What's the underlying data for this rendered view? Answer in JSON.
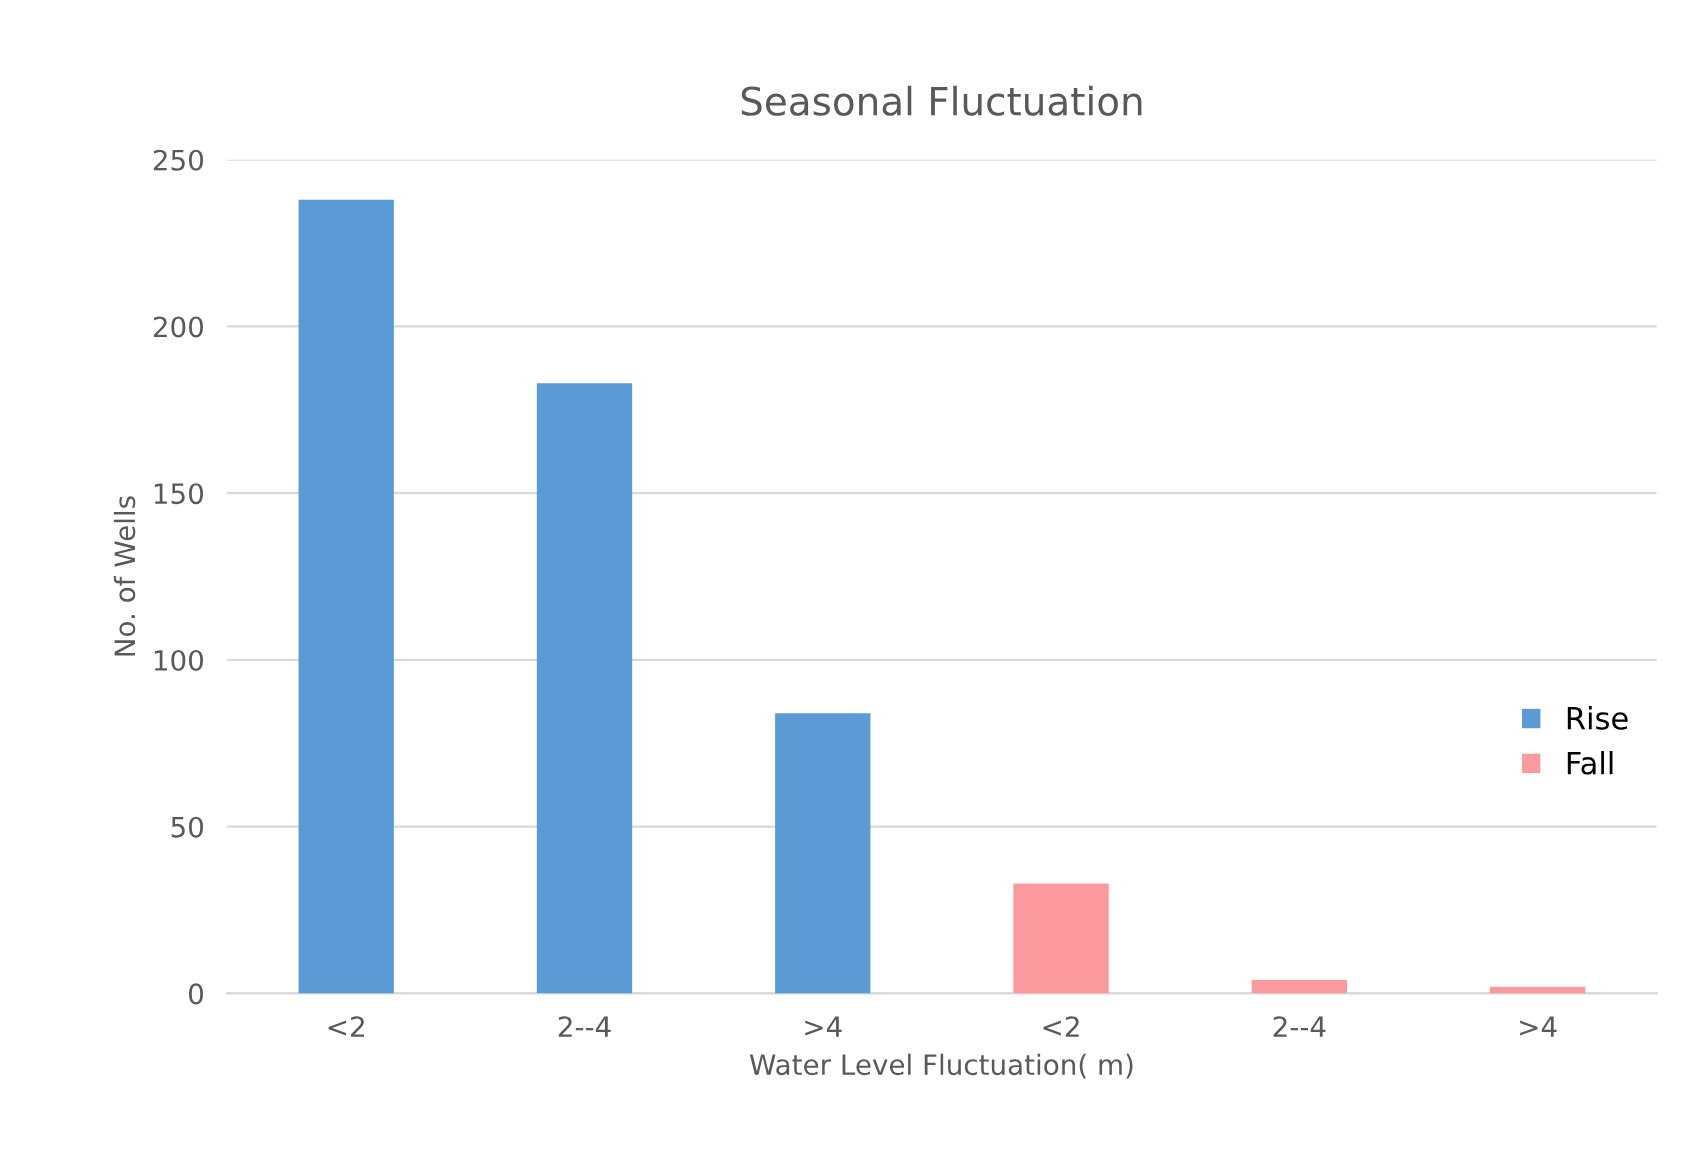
{
  "chart_data": {
    "type": "bar",
    "title": "Seasonal Fluctuation",
    "xlabel": "Water Level Fluctuation( m)",
    "ylabel": "No. of Wells",
    "categories": [
      "<2",
      "2--4",
      ">4",
      "<2",
      "2--4",
      ">4"
    ],
    "series": [
      {
        "name": "Rise",
        "color": "#5b9bd5",
        "values": [
          238,
          183,
          84,
          null,
          null,
          null
        ]
      },
      {
        "name": "Fall",
        "color": "#fb9a9e",
        "values": [
          null,
          null,
          null,
          33,
          4,
          2
        ]
      }
    ],
    "ylim": [
      0,
      250
    ],
    "yticks": [
      0,
      50,
      100,
      150,
      200,
      250
    ],
    "grid": "y",
    "legend": "right"
  }
}
